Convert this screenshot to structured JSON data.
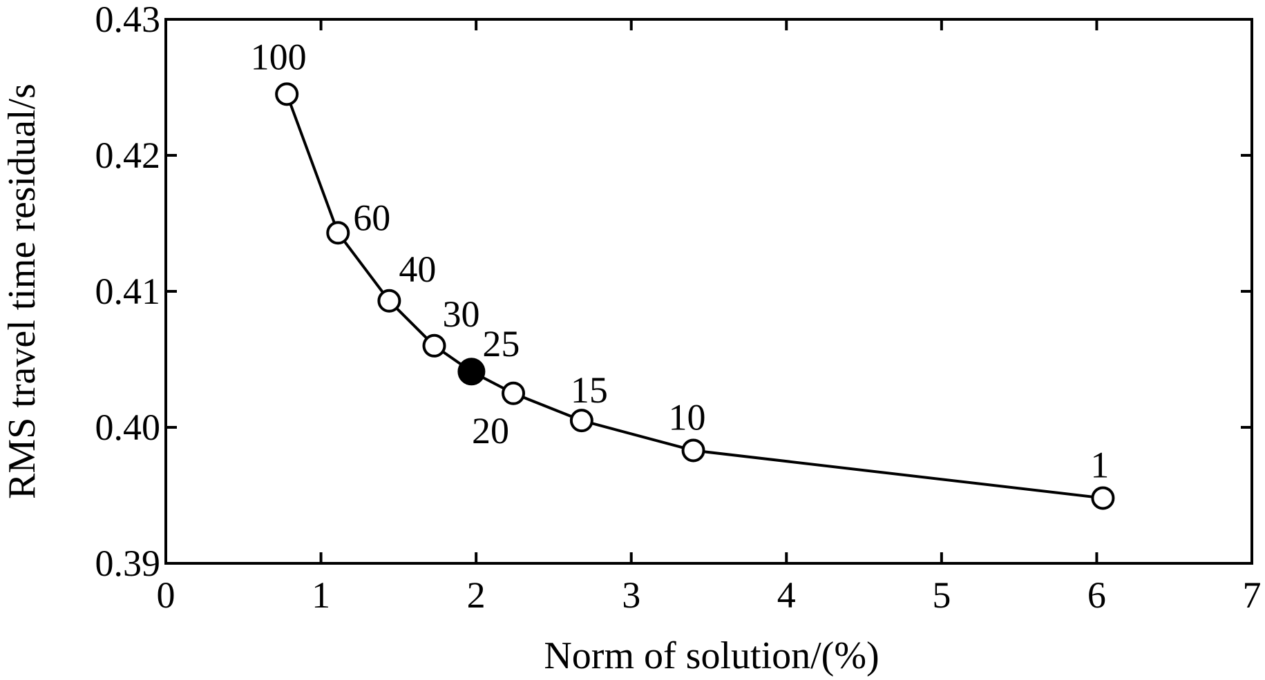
{
  "chart_data": {
    "type": "line",
    "title": "",
    "xlabel": "Norm of solution/(%)",
    "ylabel": "RMS travel time residual/s",
    "xlim": [
      0,
      7
    ],
    "ylim": [
      0.39,
      0.43
    ],
    "xticks": [
      "0",
      "1",
      "2",
      "3",
      "4",
      "5",
      "6",
      "7"
    ],
    "yticks": [
      "0.39",
      "0.40",
      "0.41",
      "0.42",
      "0.43"
    ],
    "grid": false,
    "legend": "none",
    "line_color": "#000000",
    "selected_point_label": "25",
    "series": [
      {
        "points": [
          {
            "x": 0.78,
            "y": 0.4245,
            "label": "100"
          },
          {
            "x": 1.11,
            "y": 0.4143,
            "label": "60"
          },
          {
            "x": 1.44,
            "y": 0.4093,
            "label": "40"
          },
          {
            "x": 1.73,
            "y": 0.406,
            "label": "30"
          },
          {
            "x": 1.97,
            "y": 0.4041,
            "label": "25"
          },
          {
            "x": 2.24,
            "y": 0.4025,
            "label": "20"
          },
          {
            "x": 2.68,
            "y": 0.4005,
            "label": "15"
          },
          {
            "x": 3.4,
            "y": 0.3983,
            "label": "10"
          },
          {
            "x": 6.04,
            "y": 0.3948,
            "label": "1"
          }
        ]
      }
    ]
  }
}
